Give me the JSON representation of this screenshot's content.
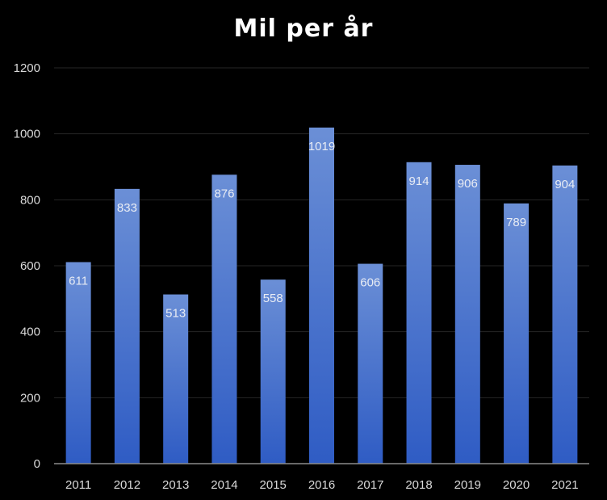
{
  "colors": {
    "background": "#000000",
    "bar_top": "#6b8fd6",
    "bar_bottom": "#2f5cc4",
    "grid": "#262626",
    "axis": "#8c8c8c",
    "text": "#d9d9d9"
  },
  "chart_data": {
    "type": "bar",
    "title": "Mil per år",
    "xlabel": "",
    "ylabel": "",
    "categories": [
      "2011",
      "2012",
      "2013",
      "2014",
      "2015",
      "2016",
      "2017",
      "2018",
      "2019",
      "2020",
      "2021"
    ],
    "values": [
      611,
      833,
      513,
      876,
      558,
      1019,
      606,
      914,
      906,
      789,
      904
    ],
    "data_labels": [
      "611",
      "833",
      "513",
      "876",
      "558",
      "1019",
      "606",
      "914",
      "906",
      "789",
      "904"
    ],
    "ylim": [
      0,
      1200
    ],
    "yticks": [
      "0",
      "200",
      "400",
      "600",
      "800",
      "1000",
      "1200"
    ],
    "grid": true,
    "legend": "none"
  }
}
